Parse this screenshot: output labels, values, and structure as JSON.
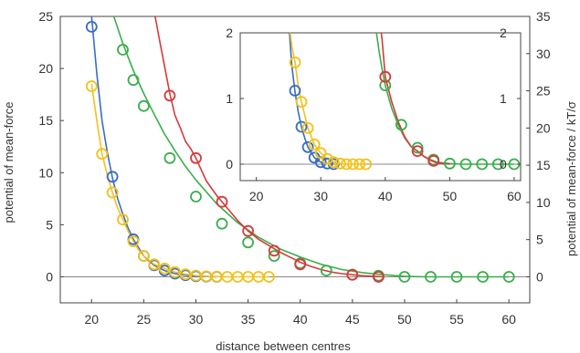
{
  "chart_data": {
    "type": "line",
    "xlabel": "distance between centres",
    "ylabel": "potential of mean-force",
    "y2label": "potential of mean-force / kT/σ",
    "main": {
      "xlim": [
        17,
        62
      ],
      "ylim": [
        -2.5,
        25
      ],
      "y2lim": [
        -3.5,
        35
      ],
      "xticks": [
        "20",
        "25",
        "30",
        "35",
        "40",
        "45",
        "50",
        "55",
        "60"
      ],
      "yticks": [
        "0",
        "5",
        "10",
        "15",
        "20",
        "25"
      ],
      "y2ticks": [
        "0",
        "5",
        "10",
        "15",
        "20",
        "25",
        "30",
        "35"
      ],
      "series": [
        {
          "color": "#3a6cc6",
          "curve_x": [
            20,
            20.5,
            21,
            21.5,
            22,
            22.5,
            23,
            23.5,
            24,
            24.5,
            25,
            25.5,
            26,
            27,
            28,
            29,
            30,
            31,
            32
          ],
          "curve_y": [
            25,
            19.5,
            15,
            12,
            9.5,
            7.5,
            6,
            4.7,
            3.6,
            2.8,
            2.0,
            1.5,
            1.1,
            0.6,
            0.3,
            0.15,
            0.05,
            0.02,
            0
          ],
          "marker_x": [
            20,
            22,
            24,
            25,
            26,
            27,
            28,
            29,
            30,
            31,
            32
          ],
          "marker_y": [
            24,
            9.6,
            3.6,
            2.0,
            1.1,
            0.6,
            0.3,
            0.15,
            0.05,
            0.02,
            0
          ]
        },
        {
          "color": "#f2c21b",
          "curve_x": [
            20,
            20.5,
            21,
            21.5,
            22,
            22.5,
            23,
            23.5,
            24,
            24.5,
            25,
            26,
            27,
            28,
            29,
            30,
            31,
            32,
            33,
            34,
            35,
            36,
            37
          ],
          "curve_y": [
            18.5,
            15,
            11.8,
            9.8,
            8.1,
            6.6,
            5.5,
            4.4,
            3.4,
            2.6,
            2.0,
            1.2,
            0.8,
            0.45,
            0.25,
            0.12,
            0.05,
            0.02,
            0,
            0,
            0,
            0,
            0
          ],
          "marker_x": [
            20,
            21,
            22,
            23,
            24,
            25,
            26,
            27,
            28,
            29,
            30,
            31,
            32,
            33,
            34,
            35,
            36,
            37
          ],
          "marker_y": [
            18.3,
            11.8,
            8.1,
            5.5,
            3.4,
            2.0,
            1.2,
            0.8,
            0.45,
            0.25,
            0.12,
            0.05,
            0.02,
            0,
            0,
            0,
            0,
            0
          ]
        },
        {
          "color": "#3aae4b",
          "curve_x": [
            20,
            21,
            22,
            23,
            24,
            25,
            26,
            27,
            28,
            29,
            30,
            32,
            34,
            36,
            38,
            40,
            42,
            44,
            46,
            48,
            50,
            52,
            55,
            57.5,
            60
          ],
          "curve_y": [
            29,
            27.5,
            25.4,
            22.4,
            19.8,
            17.6,
            15.6,
            13.7,
            12.1,
            10.6,
            9.3,
            7.0,
            5.2,
            3.8,
            2.7,
            1.9,
            1.2,
            0.7,
            0.4,
            0.2,
            0.05,
            0,
            0,
            0,
            0
          ],
          "marker_x": [
            23,
            24,
            25,
            27.5,
            30,
            32.5,
            35,
            37.5,
            40,
            42.5,
            45,
            47.5,
            50,
            52.5,
            55,
            57.5,
            60
          ],
          "marker_y": [
            21.8,
            18.9,
            16.4,
            11.4,
            7.7,
            5.1,
            3.3,
            2.0,
            1.3,
            0.6,
            0.2,
            0.1,
            0,
            0,
            0,
            0,
            0
          ]
        },
        {
          "color": "#d63a3a",
          "curve_x": [
            26,
            26.5,
            27,
            27.5,
            28,
            28.5,
            29,
            29.5,
            30,
            31,
            32,
            33,
            34,
            35,
            36,
            37,
            38,
            39,
            40,
            41,
            42,
            43,
            44,
            45,
            46,
            47,
            48
          ],
          "curve_y": [
            25.5,
            22.8,
            20.2,
            17.6,
            15.5,
            14.3,
            13.0,
            12.3,
            11.4,
            9.2,
            7.8,
            6.6,
            5.4,
            4.4,
            3.6,
            3.0,
            2.4,
            1.9,
            1.4,
            1.0,
            0.7,
            0.45,
            0.3,
            0.2,
            0.1,
            0.05,
            0
          ],
          "marker_x": [
            27.5,
            30,
            32.5,
            35,
            37.5,
            40,
            45,
            47.5
          ],
          "marker_y": [
            17.4,
            11.4,
            7.2,
            4.4,
            2.5,
            1.2,
            0.2,
            0
          ]
        }
      ]
    },
    "inset": {
      "xlim": [
        17.5,
        61
      ],
      "ylim": [
        -0.25,
        2
      ],
      "y2ticks": [
        "0",
        "1",
        "2"
      ],
      "xticks": [
        "20",
        "30",
        "40",
        "50",
        "60"
      ],
      "yticks": [
        "0",
        "1",
        "2"
      ],
      "series": [
        {
          "color": "#3a6cc6",
          "curve_x": [
            25,
            25.5,
            26,
            26.5,
            27,
            27.5,
            28,
            28.5,
            29,
            30,
            31,
            32
          ],
          "curve_y": [
            2.2,
            1.5,
            1.1,
            0.8,
            0.57,
            0.4,
            0.26,
            0.18,
            0.1,
            0.03,
            0.01,
            0
          ],
          "marker_x": [
            26,
            27,
            28,
            29,
            30,
            31,
            32
          ],
          "marker_y": [
            1.12,
            0.57,
            0.26,
            0.1,
            0.03,
            0.01,
            0
          ]
        },
        {
          "color": "#f2c21b",
          "curve_x": [
            25,
            25.5,
            26,
            26.5,
            27,
            27.5,
            28,
            29,
            30,
            31,
            32,
            33,
            34,
            35,
            36,
            37
          ],
          "curve_y": [
            2.2,
            1.8,
            1.55,
            1.2,
            0.95,
            0.75,
            0.55,
            0.3,
            0.17,
            0.08,
            0.03,
            0.01,
            0,
            0,
            0,
            0
          ],
          "marker_x": [
            26,
            27,
            28,
            29,
            30,
            31,
            32,
            33,
            34,
            35,
            36,
            37
          ],
          "marker_y": [
            1.55,
            0.95,
            0.55,
            0.3,
            0.17,
            0.08,
            0.03,
            0.01,
            0,
            0,
            0,
            0
          ]
        },
        {
          "color": "#3aae4b",
          "curve_x": [
            38.5,
            39,
            39.5,
            40,
            41,
            42,
            43,
            44,
            45,
            46,
            47,
            48,
            50,
            52,
            55,
            57.5,
            60
          ],
          "curve_y": [
            2.1,
            1.75,
            1.45,
            1.2,
            0.85,
            0.6,
            0.4,
            0.27,
            0.2,
            0.12,
            0.07,
            0.03,
            0.01,
            0,
            0,
            0,
            0
          ],
          "marker_x": [
            40,
            42.5,
            45,
            47.5,
            50,
            52.5,
            55,
            57.5,
            60
          ],
          "marker_y": [
            1.2,
            0.6,
            0.25,
            0.07,
            0.01,
            0,
            0,
            0,
            0
          ]
        },
        {
          "color": "#d63a3a",
          "curve_x": [
            39,
            39.5,
            40,
            41,
            42,
            43,
            44,
            45,
            46,
            47,
            48,
            50
          ],
          "curve_y": [
            2.3,
            1.9,
            1.33,
            0.95,
            0.65,
            0.42,
            0.27,
            0.2,
            0.12,
            0.06,
            0.02,
            0
          ],
          "marker_x": [
            40,
            45,
            47.5
          ],
          "marker_y": [
            1.33,
            0.2,
            0.05
          ]
        }
      ]
    }
  }
}
